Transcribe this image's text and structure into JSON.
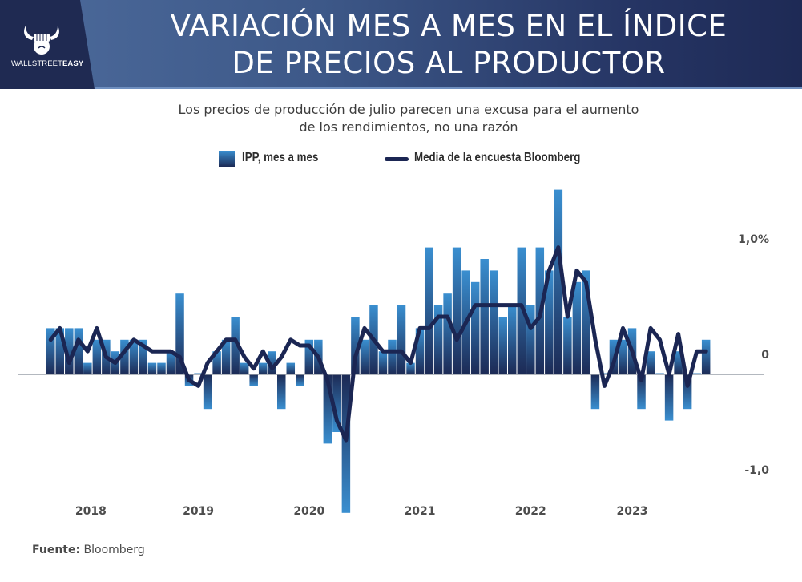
{
  "header": {
    "brand": {
      "name_light": "WALLSTREET",
      "name_bold": "EASY",
      "icon": "bull-fist-icon"
    },
    "title_line1": "VARIACIÓN MES A MES EN EL ÍNDICE",
    "title_line2": "DE PRECIOS AL PRODUCTOR"
  },
  "footer": {
    "source_label": "Fuente:",
    "source_value": "Bloomberg"
  },
  "colors": {
    "bar_top": "#3a8fd0",
    "bar_bottom": "#1c2a55",
    "line": "#1b2653",
    "axis": "#9aa0aa"
  },
  "chart_data": {
    "type": "bar",
    "title": "VARIACIÓN MES A MES EN EL ÍNDICE DE PRECIOS AL PRODUCTOR",
    "subtitle_line1": "Los precios de producción de julio parecen una excusa para el aumento",
    "subtitle_line2": "de los rendimientos, no una razón",
    "xlabel": "",
    "ylabel": "",
    "ylim": [
      -1.25,
      1.65
    ],
    "yticks": [
      {
        "value": 1.0,
        "label": "1,0%"
      },
      {
        "value": 0,
        "label": "0"
      },
      {
        "value": -1.0,
        "label": "-1,0"
      }
    ],
    "x_tick_labels": [
      {
        "label": "2018",
        "index": 4
      },
      {
        "label": "2019",
        "index": 16
      },
      {
        "label": "2020",
        "index": 28
      },
      {
        "label": "2021",
        "index": 40
      },
      {
        "label": "2022",
        "index": 52
      },
      {
        "label": "2023",
        "index": 63
      }
    ],
    "legend": {
      "placement": "top-center",
      "entries": [
        "IPP, mes a mes",
        "Media de la encuesta Bloomberg"
      ]
    },
    "grid": false,
    "series": [
      {
        "name": "IPP, mes a mes",
        "kind": "bar",
        "values": [
          0.4,
          0.4,
          0.4,
          0.4,
          0.1,
          0.3,
          0.3,
          0.2,
          0.3,
          0.3,
          0.3,
          0.1,
          0.1,
          0.2,
          0.7,
          -0.1,
          0.0,
          -0.3,
          0.2,
          0.3,
          0.5,
          0.1,
          -0.1,
          0.1,
          0.2,
          -0.3,
          0.1,
          -0.1,
          0.3,
          0.3,
          -0.6,
          -0.5,
          -1.2,
          0.5,
          0.3,
          0.6,
          0.2,
          0.3,
          0.6,
          0.1,
          0.4,
          1.1,
          0.6,
          0.7,
          1.1,
          0.9,
          0.8,
          1.0,
          0.9,
          0.5,
          0.6,
          1.1,
          0.6,
          1.1,
          0.9,
          1.6,
          0.5,
          0.8,
          0.9,
          -0.3,
          0.0,
          0.3,
          0.3,
          0.4,
          -0.3,
          0.2,
          0.0,
          -0.4,
          0.2,
          -0.3,
          0.0,
          0.3
        ]
      },
      {
        "name": "Media de la encuesta Bloomberg",
        "kind": "line",
        "values": [
          0.3,
          0.4,
          0.1,
          0.3,
          0.2,
          0.4,
          0.15,
          0.1,
          0.2,
          0.3,
          0.25,
          0.2,
          0.2,
          0.2,
          0.15,
          -0.05,
          -0.1,
          0.1,
          0.2,
          0.3,
          0.3,
          0.15,
          0.05,
          0.2,
          0.05,
          0.15,
          0.3,
          0.25,
          0.25,
          0.15,
          -0.05,
          -0.4,
          -0.57,
          0.15,
          0.4,
          0.3,
          0.2,
          0.2,
          0.2,
          0.1,
          0.4,
          0.4,
          0.5,
          0.5,
          0.3,
          0.45,
          0.6,
          0.6,
          0.6,
          0.6,
          0.6,
          0.6,
          0.4,
          0.5,
          0.9,
          1.1,
          0.5,
          0.9,
          0.8,
          0.3,
          -0.1,
          0.1,
          0.4,
          0.2,
          -0.05,
          0.4,
          0.3,
          0.0,
          0.35,
          -0.1,
          0.2,
          0.2
        ]
      }
    ]
  }
}
